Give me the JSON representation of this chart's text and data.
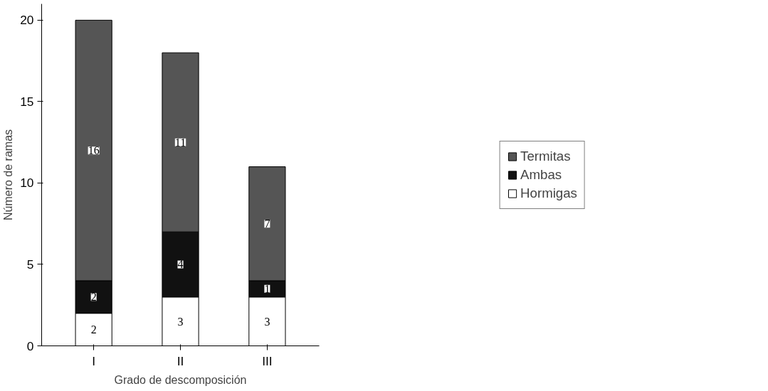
{
  "chart_data": {
    "type": "bar",
    "stacked": true,
    "xlabel": "Grado de descomposición",
    "ylabel": "Número de ramas",
    "categories": [
      "I",
      "II",
      "III"
    ],
    "series": [
      {
        "name": "Hormigas",
        "color": "#ffffff",
        "values": [
          2,
          3,
          3
        ]
      },
      {
        "name": "Ambas",
        "color": "#111111",
        "values": [
          2,
          4,
          1
        ]
      },
      {
        "name": "Termitas",
        "color": "#555555",
        "values": [
          16,
          11,
          7
        ]
      }
    ],
    "ylim": [
      0,
      21
    ],
    "yticks": [
      0,
      5,
      10,
      15,
      20
    ],
    "grid": false,
    "legend": "right",
    "data_labels": true
  }
}
